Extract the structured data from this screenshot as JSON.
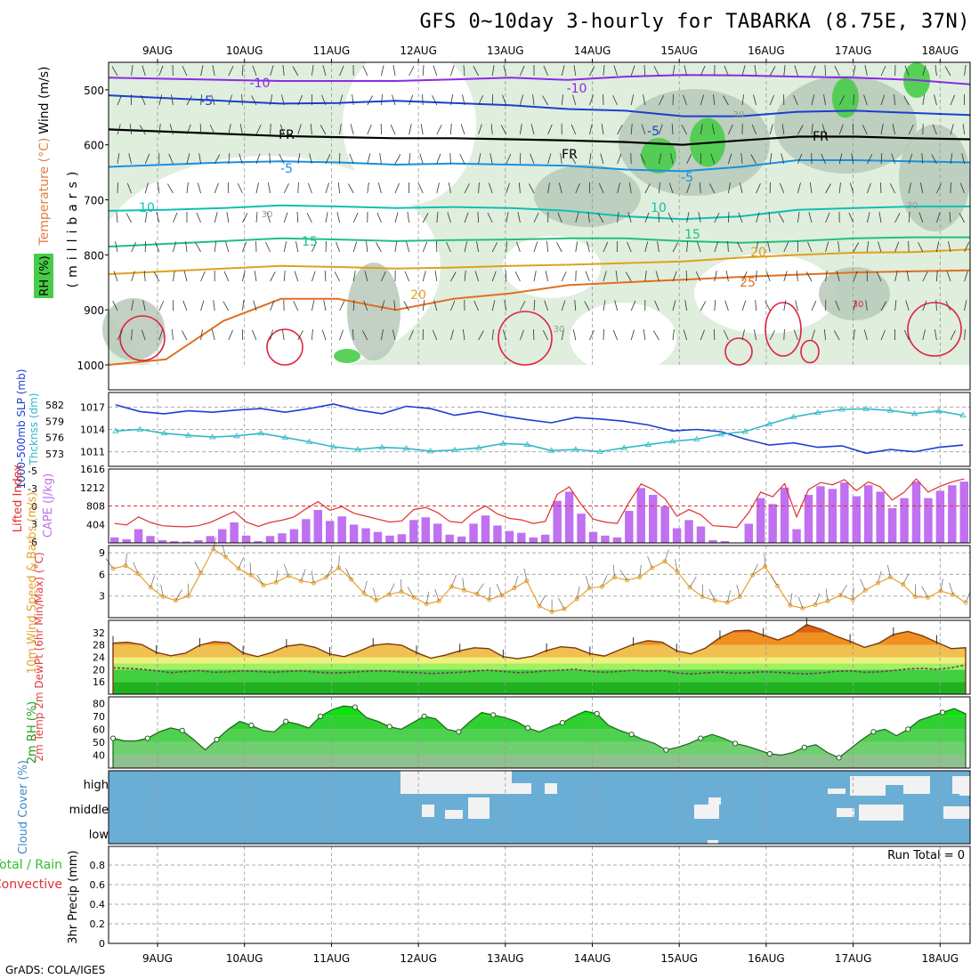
{
  "title": "GFS 0~10day 3-hourly for TABARKA (8.75E, 37N)",
  "credit": "GrADS: COLA/IGES",
  "colors": {
    "rh_fill": "#dfeedd",
    "rh_dark": "#b7c9b8",
    "rh_green": "#48cc48",
    "slp_line": "#1a3fd0",
    "thick_line": "#30b8c8",
    "cape_bar": "#c070f0",
    "li_line": "#e03030",
    "wind10": "#e8a030",
    "temp_fill": "#f0a030",
    "dewpt_fill": "#30c030",
    "rh2m_fill": "#30d030",
    "cloud_fill": "#6aaed6",
    "cloud_clear": "#f5f5f5"
  },
  "chart_data": [
    {
      "type": "contour",
      "panel": "upper-air",
      "x_ticks": [
        "9AUG",
        "10AUG",
        "11AUG",
        "12AUG",
        "13AUG",
        "14AUG",
        "15AUG",
        "16AUG",
        "17AUG",
        "18AUG"
      ],
      "y_ticks": [
        "500",
        "600",
        "700",
        "800",
        "900",
        "1000"
      ],
      "ylabel": "(millibars)",
      "side_labels": [
        "Wind (m/s)",
        "Temperature (°C)",
        "RH (%)"
      ],
      "ylim": [
        450,
        1000
      ],
      "isotherms": [
        {
          "label": "-10",
          "color": "#8a2be2",
          "y": [
            478,
            480,
            482,
            484,
            484,
            484,
            481,
            478,
            482,
            476,
            473,
            474,
            476,
            478,
            482,
            490
          ]
        },
        {
          "label": "-5",
          "color": "#1a3fd0",
          "y": [
            510,
            515,
            520,
            525,
            524,
            520,
            524,
            528,
            535,
            538,
            548,
            548,
            540,
            538,
            542,
            546
          ]
        },
        {
          "label": "FR",
          "color": "#000000",
          "y": [
            572,
            576,
            580,
            584,
            586,
            588,
            588,
            590,
            592,
            595,
            600,
            592,
            585,
            585,
            588,
            590
          ]
        },
        {
          "label": "-5",
          "color": "#1a90e0",
          "y": [
            640,
            636,
            632,
            630,
            632,
            636,
            634,
            636,
            638,
            645,
            648,
            640,
            628,
            628,
            630,
            632
          ]
        },
        {
          "label": "10",
          "color": "#10c0b0",
          "y": [
            720,
            718,
            715,
            710,
            712,
            715,
            713,
            715,
            720,
            730,
            735,
            730,
            718,
            715,
            712,
            712
          ]
        },
        {
          "label": "15",
          "color": "#20c080",
          "y": [
            785,
            780,
            775,
            770,
            772,
            775,
            773,
            772,
            770,
            770,
            775,
            778,
            775,
            770,
            768,
            768
          ]
        },
        {
          "label": "20",
          "color": "#e0a020",
          "y": [
            835,
            830,
            825,
            820,
            822,
            825,
            823,
            820,
            818,
            815,
            812,
            805,
            800,
            796,
            795,
            790
          ]
        },
        {
          "label": "25",
          "color": "#e07020",
          "y": [
            1000,
            990,
            920,
            880,
            880,
            900,
            880,
            870,
            855,
            850,
            845,
            840,
            836,
            832,
            830,
            828
          ]
        }
      ],
      "labels": [
        {
          "text": "-10"
        },
        {
          "text": "-10"
        },
        {
          "text": "-5"
        },
        {
          "text": "-5"
        },
        {
          "text": "FR"
        },
        {
          "text": "FR"
        },
        {
          "text": "FR"
        },
        {
          "text": "-5"
        },
        {
          "text": "-5"
        },
        {
          "text": "10"
        },
        {
          "text": "10"
        },
        {
          "text": "15"
        },
        {
          "text": "15"
        },
        {
          "text": "20"
        },
        {
          "text": "20"
        },
        {
          "text": "25"
        },
        {
          "text": "30"
        },
        {
          "text": "30"
        },
        {
          "text": "30"
        },
        {
          "text": "30"
        },
        {
          "text": "30"
        }
      ]
    },
    {
      "type": "line",
      "panel": "slp-thickness",
      "ylabel_left": "Thcknss (dm)",
      "ylabel_right": "1000-500mb SLP (mb)",
      "left_ticks": [
        "582",
        "579",
        "576",
        "573"
      ],
      "right_ticks": [
        "1017",
        "1014",
        "1011"
      ],
      "series": [
        {
          "name": "SLP (mb)",
          "axis": "right",
          "values": [
            1017.3,
            1016.4,
            1016.1,
            1016.5,
            1016.3,
            1016.6,
            1016.8,
            1016.3,
            1016.8,
            1017.4,
            1016.6,
            1016.1,
            1017.1,
            1016.8,
            1015.9,
            1016.4,
            1015.8,
            1015.3,
            1014.9,
            1015.6,
            1015.4,
            1015.1,
            1014.6,
            1013.8,
            1014.0,
            1013.7,
            1012.7,
            1011.9,
            1012.2,
            1011.6,
            1011.8,
            1010.8,
            1011.3,
            1011.0,
            1011.6,
            1011.9
          ]
        },
        {
          "name": "Thickness (dm)",
          "axis": "left",
          "values": [
            577.2,
            577.5,
            576.8,
            576.4,
            576.1,
            576.3,
            576.8,
            576.0,
            575.2,
            574.3,
            573.8,
            574.2,
            574.0,
            573.5,
            573.7,
            574.1,
            574.9,
            574.7,
            573.6,
            573.8,
            573.4,
            574.1,
            574.7,
            575.3,
            575.7,
            576.6,
            577.1,
            578.5,
            579.8,
            580.6,
            581.2,
            581.3,
            581.0,
            580.4,
            580.9,
            580.1
          ]
        }
      ]
    },
    {
      "type": "bar+line",
      "panel": "cape-li",
      "ylabel_left": "Lifted Index",
      "ylabel_right": "CAPE (J/kg)",
      "left_ticks": [
        "-5",
        "-3",
        "0",
        "3",
        "6"
      ],
      "right_ticks": [
        "1616",
        "1212",
        "808",
        "404"
      ],
      "cape": [
        120,
        80,
        300,
        150,
        60,
        40,
        30,
        60,
        150,
        300,
        450,
        160,
        40,
        150,
        210,
        300,
        520,
        720,
        480,
        580,
        400,
        320,
        240,
        160,
        190,
        500,
        560,
        420,
        180,
        140,
        420,
        600,
        380,
        260,
        220,
        120,
        180,
        920,
        1120,
        640,
        240,
        160,
        120,
        700,
        1200,
        1050,
        800,
        320,
        500,
        360,
        60,
        40,
        10,
        420,
        980,
        850,
        1210,
        300,
        1050,
        1240,
        1180,
        1320,
        1020,
        1260,
        1120,
        760,
        980,
        1340,
        980,
        1140,
        1260,
        1340
      ]
    },
    {
      "type": "line",
      "panel": "wind10m",
      "ylabel": "10m Wind Speed & Barbs (m/s)",
      "y_ticks": [
        "9",
        "6",
        "3"
      ],
      "ylim": [
        0,
        10
      ],
      "values": [
        6.8,
        7.2,
        6.1,
        4.2,
        2.9,
        2.4,
        3.0,
        6.2,
        9.5,
        8.4,
        6.8,
        5.9,
        4.5,
        4.9,
        5.8,
        5.1,
        4.8,
        5.6,
        6.9,
        5.3,
        3.4,
        2.4,
        3.2,
        3.6,
        2.8,
        1.9,
        2.3,
        4.3,
        3.8,
        3.3,
        2.5,
        3.1,
        4.1,
        5.1,
        1.6,
        0.8,
        1.2,
        2.6,
        4.1,
        4.3,
        5.6,
        5.2,
        5.6,
        6.9,
        7.8,
        6.4,
        4.2,
        2.9,
        2.4,
        2.1,
        2.9,
        5.9,
        7.1,
        4.4,
        1.7,
        1.3,
        1.8,
        2.3,
        3.1,
        2.5,
        3.8,
        4.8,
        5.6,
        4.6,
        2.9,
        2.8,
        3.7,
        3.2,
        2.1
      ]
    },
    {
      "type": "area",
      "panel": "temp-dewpt",
      "ylabel": "2m Temp 2m DewPt (6hr Min/Max) (°C)",
      "y_ticks": [
        "32",
        "28",
        "24",
        "20",
        "16"
      ],
      "ylim": [
        12,
        36
      ],
      "temp": [
        28.6,
        28.9,
        28.1,
        25.6,
        24.5,
        25.3,
        27.9,
        29.1,
        28.7,
        25.4,
        24.2,
        25.6,
        27.6,
        28.2,
        27.2,
        25.0,
        24.2,
        25.9,
        27.9,
        28.4,
        27.9,
        25.5,
        23.7,
        24.7,
        26.1,
        27.1,
        26.8,
        24.2,
        23.5,
        24.3,
        26.2,
        27.4,
        27.0,
        25.2,
        24.4,
        26.3,
        28.2,
        29.4,
        28.9,
        26.1,
        25.1,
        27.0,
        30.4,
        32.6,
        32.8,
        31.2,
        29.6,
        31.4,
        34.6,
        33.1,
        30.9,
        29.2,
        27.2,
        28.6,
        31.4,
        32.4,
        31.0,
        28.9,
        26.8,
        27.1
      ],
      "dewpt": [
        20.6,
        20.4,
        20.1,
        19.6,
        19.0,
        19.4,
        19.7,
        19.1,
        19.3,
        19.6,
        19.4,
        19.1,
        19.4,
        19.6,
        19.2,
        18.9,
        19.0,
        19.3,
        19.6,
        19.5,
        19.2,
        19.0,
        18.7,
        18.9,
        19.1,
        19.5,
        19.8,
        19.4,
        19.0,
        19.2,
        19.6,
        19.8,
        20.1,
        19.4,
        19.1,
        19.4,
        19.8,
        19.5,
        19.7,
        18.9,
        18.6,
        18.9,
        19.2,
        18.8,
        19.0,
        19.3,
        19.1,
        18.8,
        18.6,
        18.9,
        19.4,
        19.6,
        19.1,
        19.3,
        19.7,
        20.2,
        20.4,
        20.1,
        20.6,
        21.5
      ]
    },
    {
      "type": "area",
      "panel": "rh2m",
      "ylabel": "2m RH (%)",
      "y_ticks": [
        "80",
        "70",
        "60",
        "50",
        "40"
      ],
      "ylim": [
        30,
        85
      ],
      "values": [
        53,
        51,
        51,
        53,
        58,
        61,
        59,
        52,
        44,
        52,
        60,
        66,
        63,
        59,
        58,
        66,
        64,
        61,
        70,
        75,
        78,
        77,
        69,
        66,
        62,
        60,
        65,
        70,
        68,
        60,
        58,
        66,
        73,
        71,
        69,
        66,
        61,
        58,
        62,
        65,
        70,
        74,
        72,
        63,
        59,
        56,
        52,
        49,
        44,
        46,
        49,
        53,
        56,
        53,
        49,
        47,
        44,
        41,
        40,
        42,
        46,
        48,
        42,
        38,
        45,
        52,
        58,
        60,
        55,
        60,
        67,
        70,
        73,
        76,
        72
      ]
    },
    {
      "type": "heatmap",
      "panel": "cloud",
      "ylabel": "Cloud Cover (%)",
      "y_ticks": [
        "high",
        "middle",
        "low"
      ],
      "clear": [
        [
          0,
          0,
          0,
          0,
          0,
          0,
          0,
          0,
          0,
          0,
          0,
          0,
          0,
          0,
          0,
          0,
          0,
          0,
          0,
          0,
          0,
          0,
          0,
          0,
          0,
          0,
          0,
          0,
          0,
          0,
          0,
          0,
          0,
          0,
          0,
          0,
          0,
          0,
          0,
          0,
          0,
          0,
          0,
          0,
          0,
          0,
          0,
          0,
          0,
          0,
          0,
          0,
          0,
          0,
          0,
          0,
          0,
          0,
          0,
          0,
          0,
          0,
          0,
          0,
          0,
          0,
          0,
          0,
          0,
          0
        ],
        [
          0,
          0,
          0,
          0,
          0,
          0,
          0,
          0,
          0,
          0,
          0,
          0,
          0,
          0,
          0,
          0,
          0,
          0,
          0,
          0,
          0,
          0,
          0,
          0,
          0,
          0,
          0,
          0,
          0,
          0,
          0,
          0,
          0,
          0,
          0,
          0,
          0,
          0,
          0,
          0,
          0,
          0,
          0,
          0,
          0,
          0,
          0,
          0,
          0,
          0,
          0,
          0,
          0,
          0,
          0,
          0,
          0,
          0,
          0,
          0,
          0,
          0,
          0,
          0,
          0,
          0,
          0,
          0,
          0,
          0
        ]
      ]
    },
    {
      "type": "bar",
      "panel": "precip",
      "ylabel": "3hr Precip (mm)",
      "side_labels": [
        "Total / Rain",
        "Convective"
      ],
      "run_total": "Run Total = 0",
      "y_ticks": [
        "0.8",
        "0.6",
        "0.4",
        "0.2",
        "0"
      ],
      "ylim": [
        0,
        1
      ],
      "values": []
    }
  ]
}
